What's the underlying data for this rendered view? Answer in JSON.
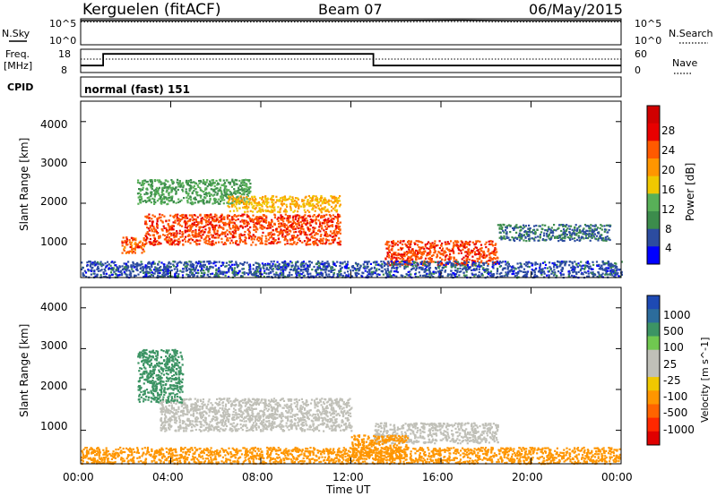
{
  "header": {
    "station": "Kerguelen (fitACF)",
    "beam": "Beam 07",
    "date": "06/May/2015"
  },
  "top_panels": {
    "nsky_label": "N.Sky",
    "nsearch_label": "N.Search",
    "noise_ticks_left": [
      "10^5",
      "10^0"
    ],
    "noise_ticks_right": [
      "10^5",
      "10^0"
    ],
    "freq_label_line1": "Freq.",
    "freq_label_line2": "[MHz]",
    "freq_ticks": [
      "18",
      "8"
    ],
    "nave_label": "Nave",
    "nave_ticks": [
      "60",
      "0"
    ],
    "cpid_label": "CPID",
    "cpid_value": "normal (fast) 151"
  },
  "power_panel": {
    "ylabel": "Slant Range [km]",
    "yticks": [
      "4000",
      "3000",
      "2000",
      "1000"
    ],
    "colorbar_label": "Power [dB]",
    "colorbar_ticks": [
      "28",
      "24",
      "20",
      "16",
      "12",
      "8",
      "4"
    ],
    "colors": [
      "#0000ff",
      "#2c4ca0",
      "#3c8c4c",
      "#58b058",
      "#f0c800",
      "#ff9600",
      "#ff5a00",
      "#e80000",
      "#d00000"
    ]
  },
  "velocity_panel": {
    "ylabel": "Slant Range [km]",
    "yticks": [
      "4000",
      "3000",
      "2000",
      "1000"
    ],
    "colorbar_label": "Velocity [m s^-1]",
    "colorbar_ticks": [
      "1000",
      "500",
      "100",
      "25",
      "-25",
      "-100",
      "-500",
      "-1000"
    ],
    "colors": [
      "#1e4ab4",
      "#2c6c9c",
      "#3c9464",
      "#70c850",
      "#c0c0b8",
      "#c0c0b8",
      "#f0c800",
      "#ff9600",
      "#ff6400",
      "#ff2800",
      "#e00000"
    ]
  },
  "x_axis": {
    "label": "Time UT",
    "ticks": [
      "00:00",
      "04:00",
      "08:00",
      "12:00",
      "16:00",
      "20:00",
      "00:00"
    ]
  },
  "chart_data": [
    {
      "type": "line",
      "title": "N.Sky / N.Search",
      "y_scale": "log",
      "ylim": [
        "10^0",
        "10^5"
      ],
      "x_hours": [
        0,
        6,
        12,
        15,
        17,
        19,
        24
      ],
      "series": [
        {
          "values": [
            45000,
            45000,
            46000,
            48000,
            52000,
            46000,
            45000
          ]
        }
      ]
    },
    {
      "type": "line",
      "title": "Freq. [MHz] / Nave",
      "freq_ylim": [
        8,
        18
      ],
      "nave_ylim": [
        0,
        60
      ],
      "x_hours": [
        0,
        1.0,
        1.0,
        13.0,
        13.0,
        24
      ],
      "series": [
        {
          "name": "Freq.",
          "values": [
            11,
            11,
            16,
            16,
            11,
            11
          ]
        },
        {
          "name": "Nave",
          "values": [
            30,
            30,
            30,
            30,
            30,
            30
          ]
        }
      ]
    },
    {
      "type": "heatmap",
      "title": "Power [dB]",
      "xlim_hours": [
        0,
        24
      ],
      "ylim_km": [
        180,
        4500
      ],
      "regions": [
        {
          "t0": 2.8,
          "t1": 11.5,
          "r0": 1000,
          "r1": 1750,
          "value": 27
        },
        {
          "t0": 1.8,
          "t1": 2.8,
          "r0": 800,
          "r1": 1200,
          "value": 26
        },
        {
          "t0": 2.5,
          "t1": 7.5,
          "r0": 2000,
          "r1": 2600,
          "value": 12
        },
        {
          "t0": 6.5,
          "t1": 11.5,
          "r0": 1800,
          "r1": 2200,
          "value": 20
        },
        {
          "t0": 13.5,
          "t1": 18.5,
          "r0": 500,
          "r1": 1100,
          "value": 27
        },
        {
          "t0": 18.5,
          "t1": 23.5,
          "r0": 1100,
          "r1": 1500,
          "value": 8
        },
        {
          "t0": 0,
          "t1": 24,
          "r0": 200,
          "r1": 600,
          "value": 6
        }
      ]
    },
    {
      "type": "heatmap",
      "title": "Velocity [m s^-1]",
      "xlim_hours": [
        0,
        24
      ],
      "ylim_km": [
        180,
        4500
      ],
      "regions": [
        {
          "t0": 3.5,
          "t1": 12.0,
          "r0": 1000,
          "r1": 1800,
          "value": 0
        },
        {
          "t0": 13.0,
          "t1": 18.5,
          "r0": 700,
          "r1": 1200,
          "value": 0
        },
        {
          "t0": 2.5,
          "t1": 4.5,
          "r0": 1700,
          "r1": 3000,
          "value": 150
        },
        {
          "t0": 0,
          "t1": 24,
          "r0": 200,
          "r1": 600,
          "value": -300
        },
        {
          "t0": 12.0,
          "t1": 14.5,
          "r0": 300,
          "r1": 900,
          "value": -300
        }
      ]
    }
  ]
}
